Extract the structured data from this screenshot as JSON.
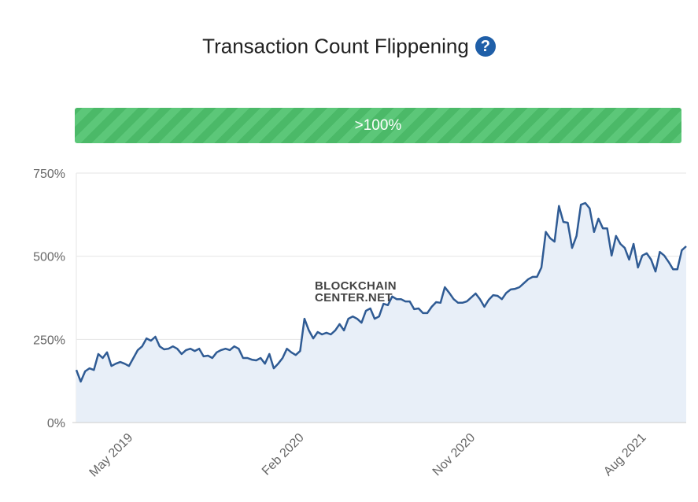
{
  "title": "Transaction Count Flippening",
  "help_icon": "question-circle-icon",
  "progress": {
    "label": ">100%",
    "value_percent": 100,
    "color": "#4bb968"
  },
  "watermark": [
    "BLOCKCHAIN",
    "CENTER.NET"
  ],
  "chart_data": {
    "type": "area",
    "title": "",
    "xlabel": "",
    "ylabel": "",
    "ylim": [
      0,
      750
    ],
    "yticks": [
      0,
      250,
      500,
      750
    ],
    "ytick_labels": [
      "0%",
      "250%",
      "500%",
      "750%"
    ],
    "x_start": "2019-02",
    "x_interval": "weekly",
    "xticks_week_index": [
      13,
      52,
      91,
      130
    ],
    "xtick_labels": [
      "May 2019",
      "Feb 2020",
      "Nov 2020",
      "Aug 2021"
    ],
    "line_color": "#2f5b94",
    "fill_color": "#e8eff8",
    "grid": true,
    "legend": "none",
    "values": [
      158,
      123,
      154,
      163,
      158,
      206,
      194,
      211,
      170,
      177,
      182,
      177,
      170,
      194,
      218,
      229,
      253,
      246,
      258,
      229,
      220,
      222,
      229,
      222,
      206,
      218,
      222,
      215,
      222,
      199,
      201,
      194,
      211,
      218,
      222,
      218,
      229,
      222,
      194,
      194,
      189,
      187,
      194,
      177,
      206,
      163,
      177,
      194,
      222,
      211,
      203,
      215,
      312,
      277,
      253,
      272,
      265,
      270,
      265,
      277,
      296,
      277,
      312,
      319,
      312,
      300,
      336,
      343,
      312,
      319,
      357,
      353,
      379,
      371,
      371,
      364,
      364,
      341,
      343,
      329,
      329,
      348,
      362,
      360,
      407,
      390,
      371,
      360,
      360,
      364,
      376,
      388,
      371,
      348,
      369,
      383,
      381,
      371,
      390,
      400,
      402,
      407,
      419,
      431,
      438,
      438,
      466,
      573,
      554,
      544,
      651,
      603,
      601,
      525,
      561,
      655,
      660,
      644,
      573,
      613,
      584,
      584,
      502,
      561,
      537,
      525,
      490,
      537,
      466,
      502,
      509,
      490,
      454,
      513,
      502,
      483,
      461,
      461,
      518,
      530
    ]
  }
}
